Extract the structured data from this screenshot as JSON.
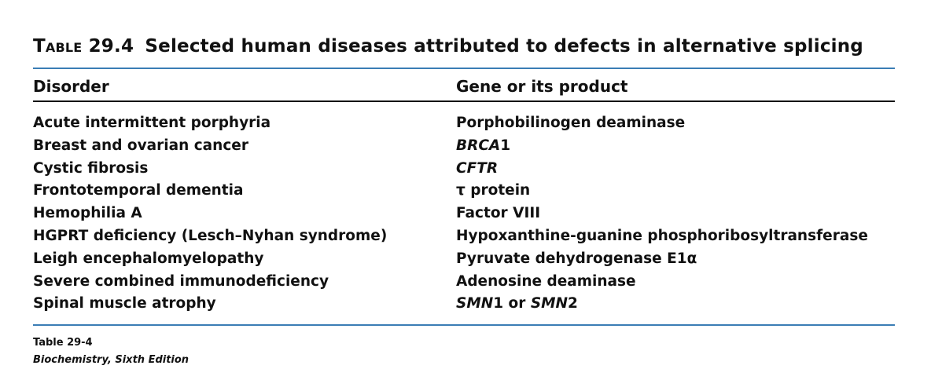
{
  "table": {
    "label": "Table 29.4",
    "title": "Selected human diseases attributed to defects in alternative splicing",
    "headers": [
      "Disorder",
      "Gene or its product"
    ],
    "rows": [
      {
        "disorder": "Acute intermittent porphyria",
        "gene": [
          {
            "text": "Porphobilinogen deaminase",
            "italic": false
          }
        ]
      },
      {
        "disorder": "Breast and ovarian cancer",
        "gene": [
          {
            "text": "BRCA",
            "italic": true
          },
          {
            "text": "1",
            "italic": false
          }
        ]
      },
      {
        "disorder": "Cystic fibrosis",
        "gene": [
          {
            "text": "CFTR",
            "italic": true
          }
        ]
      },
      {
        "disorder": "Frontotemporal dementia",
        "gene": [
          {
            "text": "τ protein",
            "italic": false
          }
        ]
      },
      {
        "disorder": "Hemophilia A",
        "gene": [
          {
            "text": "Factor VIII",
            "italic": false
          }
        ]
      },
      {
        "disorder": "HGPRT deficiency (Lesch–Nyhan syndrome)",
        "gene": [
          {
            "text": "Hypoxanthine-guanine phosphoribosyltransferase",
            "italic": false
          }
        ]
      },
      {
        "disorder": "Leigh encephalomyelopathy",
        "gene": [
          {
            "text": "Pyruvate dehydrogenase E1α",
            "italic": false
          }
        ]
      },
      {
        "disorder": "Severe combined immunodeficiency",
        "gene": [
          {
            "text": "Adenosine deaminase",
            "italic": false
          }
        ]
      },
      {
        "disorder": "Spinal muscle atrophy",
        "gene": [
          {
            "text": "SMN",
            "italic": true
          },
          {
            "text": "1 or ",
            "italic": false
          },
          {
            "text": "SMN",
            "italic": true
          },
          {
            "text": "2",
            "italic": false
          }
        ]
      }
    ]
  },
  "footer": {
    "table_ref": "Table 29-4",
    "source": "Biochemistry, Sixth Edition"
  },
  "colors": {
    "rule_accent": "#3a7db5",
    "text": "#111111"
  }
}
